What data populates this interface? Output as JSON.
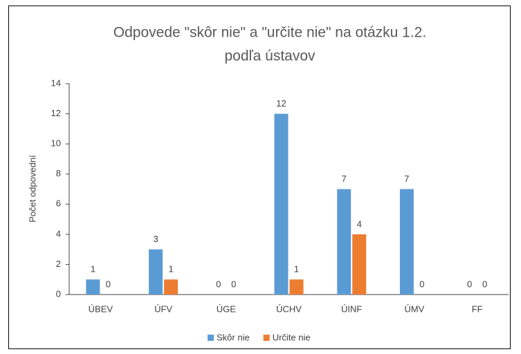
{
  "chart_data": {
    "type": "bar",
    "title": [
      "Odpovede \"skôr nie\" a \"určite nie\" na otázku 1.2.",
      "podľa ústavov"
    ],
    "y_label": "Počet odpovední",
    "categories": [
      "ÚBEV",
      "ÚFV",
      "ÚGE",
      "ÚCHV",
      "ÚINF",
      "ÚMV",
      "FF"
    ],
    "series": [
      {
        "name": "Skôr nie",
        "color": "#5b9bd5",
        "values": [
          1,
          3,
          0,
          12,
          7,
          7,
          0
        ]
      },
      {
        "name": "Určite nie",
        "color": "#ed7d31",
        "values": [
          0,
          1,
          0,
          1,
          4,
          0,
          0
        ]
      }
    ],
    "ylim": [
      0,
      14
    ],
    "yticks": [
      0,
      2,
      4,
      6,
      8,
      10,
      12,
      14
    ],
    "grid": false,
    "legend": "bottom"
  }
}
